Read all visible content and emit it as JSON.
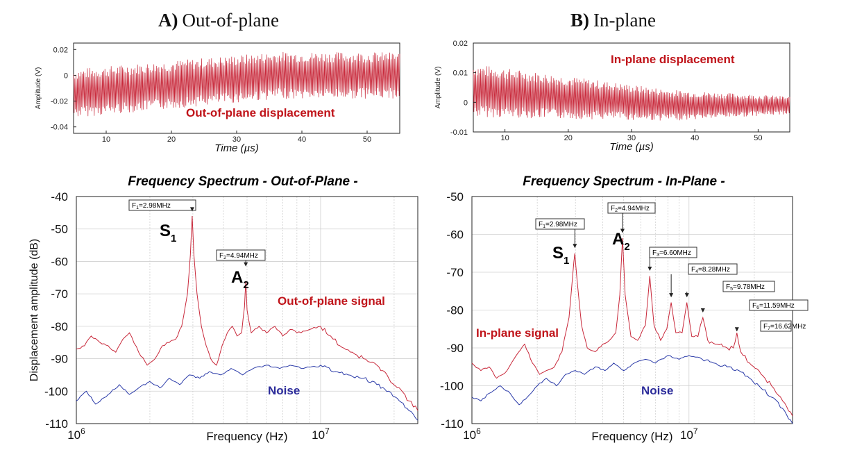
{
  "headers": {
    "left": {
      "letter": "A)",
      "text": "Out-of-plane"
    },
    "right": {
      "letter": "B)",
      "text": "In-plane"
    }
  },
  "colors": {
    "signal": "#c8283a",
    "noise": "#2a3aa8",
    "annotation_red": "#c0141a",
    "annotation_blue": "#2b2b9a"
  },
  "chart_data": [
    {
      "id": "time_oop",
      "type": "line",
      "xlabel": "Time (µs)",
      "ylabel": "Amplitude (V)",
      "xlim": [
        5,
        55
      ],
      "ylim": [
        -0.045,
        0.025
      ],
      "xticks": [
        10,
        20,
        30,
        40,
        50
      ],
      "yticks": [
        {
          "v": 0.02,
          "label": "0.02"
        },
        {
          "v": 0,
          "label": "0"
        },
        {
          "v": -0.02,
          "label": "-0.02"
        },
        {
          "v": -0.04,
          "label": "-0.04"
        }
      ],
      "annotation": "Out-of-plane displacement",
      "envelope": {
        "center": -0.003,
        "amp_start": 0.019,
        "amp_end": 0.018,
        "offset_start": -0.014,
        "offset_end": 0.0
      },
      "series": [
        {
          "color": "#c8283a"
        }
      ]
    },
    {
      "id": "time_ip",
      "type": "line",
      "xlabel": "Time (µs)",
      "ylabel": "Amplitude (V)",
      "xlim": [
        5,
        55
      ],
      "ylim": [
        -0.01,
        0.02
      ],
      "xticks": [
        10,
        20,
        30,
        40,
        50
      ],
      "yticks": [
        {
          "v": 0.02,
          "label": "0.02"
        },
        {
          "v": 0.01,
          "label": "0.01"
        },
        {
          "v": 0,
          "label": "0"
        },
        {
          "v": -0.01,
          "label": "-0.01"
        }
      ],
      "annotation": "In-plane displacement",
      "envelope": {
        "center": 0.001,
        "amp_start": 0.009,
        "amp_end": 0.003,
        "offset_start": 0.004,
        "offset_end": -0.001
      },
      "series": [
        {
          "color": "#c8283a"
        }
      ]
    },
    {
      "id": "spec_oop",
      "type": "line",
      "title": "Frequency Spectrum  -  Out-of-Plane  -",
      "xlabel": "Frequency (Hz)",
      "ylabel": "Displacement amplitude (dB)",
      "xscale": "log",
      "xlim": [
        1000000,
        25000000
      ],
      "ylim": [
        -110,
        -40
      ],
      "yticks": [
        -40,
        -50,
        -60,
        -70,
        -80,
        -90,
        -100,
        -110
      ],
      "xticks": [
        {
          "v": 1000000,
          "base": "10",
          "exp": "6"
        },
        {
          "v": 10000000,
          "base": "10",
          "exp": "7"
        }
      ],
      "grid": true,
      "signal_label": "Out-of-plane signal",
      "noise_label": "Noise",
      "modes": [
        {
          "main": "S",
          "sub": "1",
          "f": 2980000
        },
        {
          "main": "A",
          "sub": "2",
          "f": 4940000
        }
      ],
      "peaks": [
        {
          "name": "F",
          "idx": "1",
          "rest": "=2.98MHz",
          "f": 2980000,
          "db": -45
        },
        {
          "name": "F",
          "idx": "2",
          "rest": "=4.94MHz",
          "f": 4940000,
          "db": -62
        }
      ],
      "series": [
        {
          "name": "Out-of-plane signal",
          "color": "#c8283a",
          "points": [
            [
              1000000,
              -87
            ],
            [
              1080000,
              -86
            ],
            [
              1150000,
              -83
            ],
            [
              1250000,
              -85
            ],
            [
              1350000,
              -86
            ],
            [
              1450000,
              -88
            ],
            [
              1550000,
              -84
            ],
            [
              1650000,
              -82
            ],
            [
              1800000,
              -88
            ],
            [
              1950000,
              -92
            ],
            [
              2100000,
              -90
            ],
            [
              2250000,
              -86
            ],
            [
              2400000,
              -85
            ],
            [
              2550000,
              -84
            ],
            [
              2700000,
              -80
            ],
            [
              2850000,
              -70
            ],
            [
              2930000,
              -58
            ],
            [
              2980000,
              -46
            ],
            [
              3030000,
              -58
            ],
            [
              3120000,
              -70
            ],
            [
              3250000,
              -80
            ],
            [
              3400000,
              -86
            ],
            [
              3550000,
              -90
            ],
            [
              3750000,
              -92
            ],
            [
              3950000,
              -86
            ],
            [
              4150000,
              -82
            ],
            [
              4350000,
              -80
            ],
            [
              4550000,
              -83
            ],
            [
              4750000,
              -82
            ],
            [
              4880000,
              -74
            ],
            [
              4940000,
              -66
            ],
            [
              5000000,
              -75
            ],
            [
              5200000,
              -82
            ],
            [
              5600000,
              -80
            ],
            [
              6000000,
              -82
            ],
            [
              6500000,
              -80
            ],
            [
              7000000,
              -83
            ],
            [
              7500000,
              -81
            ],
            [
              8000000,
              -82
            ],
            [
              9000000,
              -81
            ],
            [
              10000000,
              -80
            ],
            [
              11000000,
              -83
            ],
            [
              12000000,
              -86
            ],
            [
              13500000,
              -88
            ],
            [
              15000000,
              -90
            ],
            [
              17000000,
              -92
            ],
            [
              19000000,
              -96
            ],
            [
              21000000,
              -99
            ],
            [
              23000000,
              -103
            ],
            [
              25000000,
              -106
            ]
          ]
        },
        {
          "name": "Noise",
          "color": "#2a3aa8",
          "points": [
            [
              1000000,
              -103
            ],
            [
              1100000,
              -100
            ],
            [
              1200000,
              -104
            ],
            [
              1350000,
              -101
            ],
            [
              1500000,
              -98
            ],
            [
              1650000,
              -101
            ],
            [
              1800000,
              -99
            ],
            [
              2000000,
              -97
            ],
            [
              2200000,
              -99
            ],
            [
              2400000,
              -96
            ],
            [
              2650000,
              -98
            ],
            [
              2900000,
              -95
            ],
            [
              3200000,
              -96
            ],
            [
              3500000,
              -94
            ],
            [
              3900000,
              -95
            ],
            [
              4300000,
              -93
            ],
            [
              4800000,
              -95
            ],
            [
              5300000,
              -93
            ],
            [
              6000000,
              -92
            ],
            [
              6800000,
              -93
            ],
            [
              7500000,
              -92
            ],
            [
              8500000,
              -93
            ],
            [
              10000000,
              -92
            ],
            [
              11500000,
              -94
            ],
            [
              13000000,
              -95
            ],
            [
              15000000,
              -96
            ],
            [
              17000000,
              -98
            ],
            [
              19000000,
              -100
            ],
            [
              21000000,
              -103
            ],
            [
              23000000,
              -106
            ],
            [
              25000000,
              -109
            ]
          ]
        }
      ]
    },
    {
      "id": "spec_ip",
      "type": "line",
      "title": "Frequency Spectrum  -  In-Plane  -",
      "xlabel": "Frequency (Hz)",
      "ylabel": "",
      "xscale": "log",
      "xlim": [
        1000000,
        30000000
      ],
      "ylim": [
        -110,
        -50
      ],
      "yticks": [
        -50,
        -60,
        -70,
        -80,
        -90,
        -100,
        -110
      ],
      "xticks": [
        {
          "v": 1000000,
          "base": "10",
          "exp": "6"
        },
        {
          "v": 10000000,
          "base": "10",
          "exp": "7"
        }
      ],
      "grid": true,
      "signal_label": "In-plane signal",
      "noise_label": "Noise",
      "modes": [
        {
          "main": "S",
          "sub": "1",
          "f": 2980000
        },
        {
          "main": "A",
          "sub": "2",
          "f": 4940000
        }
      ],
      "peaks": [
        {
          "name": "F",
          "idx": "1",
          "rest": "=2.98MHz",
          "f": 2980000,
          "db": -64
        },
        {
          "name": "F",
          "idx": "2",
          "rest": "=4.94MHz",
          "f": 4940000,
          "db": -60
        },
        {
          "name": "F",
          "idx": "3",
          "rest": "=6.60MHz",
          "f": 6600000,
          "db": -70
        },
        {
          "name": "F",
          "idx": "4",
          "rest": "=8.28MHz",
          "f": 8280000,
          "db": -77
        },
        {
          "name": "F",
          "idx": "5",
          "rest": "=9.78MHz",
          "f": 9780000,
          "db": -77
        },
        {
          "name": "F",
          "idx": "6",
          "rest": "=11.59MHz",
          "f": 11590000,
          "db": -81
        },
        {
          "name": "F",
          "idx": "7",
          "rest": "=16.62MHz",
          "f": 16620000,
          "db": -86
        }
      ],
      "series": [
        {
          "name": "In-plane signal",
          "color": "#c8283a",
          "points": [
            [
              1000000,
              -94
            ],
            [
              1100000,
              -96
            ],
            [
              1200000,
              -95
            ],
            [
              1300000,
              -98
            ],
            [
              1450000,
              -96
            ],
            [
              1600000,
              -92
            ],
            [
              1750000,
              -89
            ],
            [
              1900000,
              -94
            ],
            [
              2050000,
              -97
            ],
            [
              2200000,
              -96
            ],
            [
              2400000,
              -95
            ],
            [
              2600000,
              -91
            ],
            [
              2800000,
              -82
            ],
            [
              2920000,
              -70
            ],
            [
              2980000,
              -65
            ],
            [
              3050000,
              -72
            ],
            [
              3200000,
              -84
            ],
            [
              3400000,
              -90
            ],
            [
              3700000,
              -91
            ],
            [
              4000000,
              -89
            ],
            [
              4300000,
              -88
            ],
            [
              4600000,
              -86
            ],
            [
              4800000,
              -76
            ],
            [
              4940000,
              -61
            ],
            [
              5080000,
              -76
            ],
            [
              5400000,
              -87
            ],
            [
              5800000,
              -88
            ],
            [
              6300000,
              -84
            ],
            [
              6600000,
              -71
            ],
            [
              6900000,
              -84
            ],
            [
              7400000,
              -88
            ],
            [
              7900000,
              -85
            ],
            [
              8280000,
              -78
            ],
            [
              8700000,
              -86
            ],
            [
              9300000,
              -86
            ],
            [
              9780000,
              -78
            ],
            [
              10300000,
              -87
            ],
            [
              11000000,
              -87
            ],
            [
              11590000,
              -82
            ],
            [
              12200000,
              -88
            ],
            [
              13500000,
              -89
            ],
            [
              15000000,
              -90
            ],
            [
              16000000,
              -90
            ],
            [
              16620000,
              -86
            ],
            [
              17300000,
              -91
            ],
            [
              19000000,
              -94
            ],
            [
              21000000,
              -96
            ],
            [
              24000000,
              -100
            ],
            [
              27000000,
              -104
            ],
            [
              30000000,
              -108
            ]
          ]
        },
        {
          "name": "Noise",
          "color": "#2a3aa8",
          "points": [
            [
              1000000,
              -103
            ],
            [
              1100000,
              -104
            ],
            [
              1200000,
              -102
            ],
            [
              1350000,
              -100
            ],
            [
              1500000,
              -102
            ],
            [
              1650000,
              -105
            ],
            [
              1800000,
              -103
            ],
            [
              2000000,
              -100
            ],
            [
              2200000,
              -98
            ],
            [
              2450000,
              -100
            ],
            [
              2700000,
              -97
            ],
            [
              3000000,
              -96
            ],
            [
              3300000,
              -97
            ],
            [
              3700000,
              -95
            ],
            [
              4100000,
              -96
            ],
            [
              4500000,
              -94
            ],
            [
              5000000,
              -96
            ],
            [
              5600000,
              -94
            ],
            [
              6300000,
              -93
            ],
            [
              7000000,
              -94
            ],
            [
              8000000,
              -92
            ],
            [
              9000000,
              -93
            ],
            [
              10000000,
              -92
            ],
            [
              11500000,
              -93
            ],
            [
              13000000,
              -94
            ],
            [
              15000000,
              -95
            ],
            [
              17000000,
              -96
            ],
            [
              19000000,
              -98
            ],
            [
              21000000,
              -100
            ],
            [
              24000000,
              -103
            ],
            [
              27000000,
              -106
            ],
            [
              30000000,
              -110
            ]
          ]
        }
      ]
    }
  ]
}
